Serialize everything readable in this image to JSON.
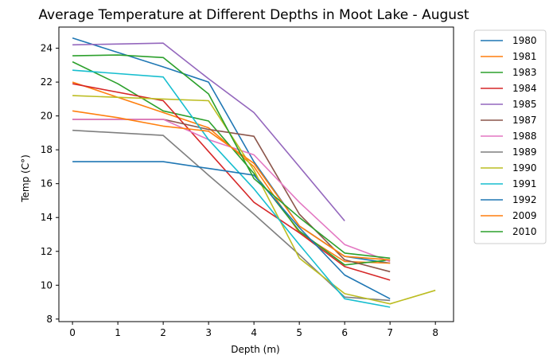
{
  "chart_data": {
    "type": "line",
    "title": "Average Temperature at Different Depths in Moot Lake - August",
    "xlabel": "Depth (m)",
    "ylabel": "Temp (C°)",
    "xlim": [
      -0.3,
      8.4
    ],
    "ylim": [
      7.85,
      25.25
    ],
    "xticks": [
      0,
      1,
      2,
      3,
      4,
      5,
      6,
      7,
      8
    ],
    "yticks": [
      8,
      10,
      12,
      14,
      16,
      18,
      20,
      22,
      24
    ],
    "grid": false,
    "legend_position": "outside-right",
    "series": [
      {
        "name": "1980",
        "color": "#1f77b4",
        "x": [
          0,
          2,
          3,
          4,
          5,
          6,
          7
        ],
        "y": [
          24.6,
          22.9,
          22.0,
          17.3,
          13.5,
          11.7,
          11.3
        ]
      },
      {
        "name": "1981",
        "color": "#ff7f0e",
        "x": [
          0,
          2,
          3,
          4,
          5,
          6,
          7
        ],
        "y": [
          22.0,
          20.2,
          19.3,
          17.0,
          13.1,
          11.4,
          11.3
        ]
      },
      {
        "name": "1983",
        "color": "#2ca02c",
        "x": [
          0,
          1,
          2,
          3,
          4,
          5,
          6,
          7
        ],
        "y": [
          23.2,
          21.9,
          20.3,
          19.7,
          16.6,
          13.2,
          11.2,
          11.5
        ]
      },
      {
        "name": "1984",
        "color": "#d62728",
        "x": [
          0,
          2,
          3,
          4,
          5,
          6,
          7
        ],
        "y": [
          21.9,
          20.9,
          17.9,
          14.9,
          13.1,
          11.1,
          10.3
        ]
      },
      {
        "name": "1985",
        "color": "#9467bd",
        "x": [
          0,
          2,
          3,
          4,
          5,
          6
        ],
        "y": [
          24.2,
          24.3,
          22.2,
          20.2,
          17.0,
          13.8
        ]
      },
      {
        "name": "1987",
        "color": "#8c564b",
        "x": [
          0,
          2,
          3,
          4,
          5,
          6,
          7
        ],
        "y": [
          19.8,
          19.8,
          19.2,
          18.8,
          14.2,
          11.5,
          10.8
        ]
      },
      {
        "name": "1988",
        "color": "#e377c2",
        "x": [
          0,
          2,
          3,
          4,
          5,
          6,
          7
        ],
        "y": [
          19.8,
          19.8,
          18.6,
          17.7,
          14.9,
          12.4,
          11.4
        ]
      },
      {
        "name": "1989",
        "color": "#7f7f7f",
        "x": [
          0,
          2,
          3,
          4,
          5,
          6,
          7
        ],
        "y": [
          19.15,
          18.85,
          16.5,
          14.2,
          11.8,
          9.3,
          9.1
        ]
      },
      {
        "name": "1990",
        "color": "#bcbd22",
        "x": [
          0,
          2,
          3,
          4,
          5,
          6,
          7,
          8
        ],
        "y": [
          21.2,
          21.0,
          20.9,
          16.8,
          11.6,
          9.5,
          8.9,
          9.7
        ]
      },
      {
        "name": "1991",
        "color": "#17becf",
        "x": [
          0,
          2,
          3,
          4,
          5,
          6,
          7
        ],
        "y": [
          22.7,
          22.3,
          18.6,
          15.7,
          12.4,
          9.2,
          8.7
        ]
      },
      {
        "name": "1992",
        "color": "#1f77b4",
        "x": [
          0,
          2,
          3,
          4,
          5,
          6,
          7
        ],
        "y": [
          17.3,
          17.3,
          16.9,
          16.5,
          13.4,
          10.6,
          9.2
        ]
      },
      {
        "name": "2009",
        "color": "#ff7f0e",
        "x": [
          0,
          1,
          2,
          3,
          4,
          5,
          6,
          7
        ],
        "y": [
          20.3,
          19.9,
          19.4,
          19.1,
          17.2,
          13.5,
          11.7,
          11.5
        ]
      },
      {
        "name": "2010",
        "color": "#2ca02c",
        "x": [
          0,
          1,
          2,
          3,
          4,
          5,
          6,
          7
        ],
        "y": [
          23.55,
          23.6,
          23.45,
          21.3,
          16.3,
          14.0,
          11.9,
          11.6
        ]
      }
    ]
  }
}
